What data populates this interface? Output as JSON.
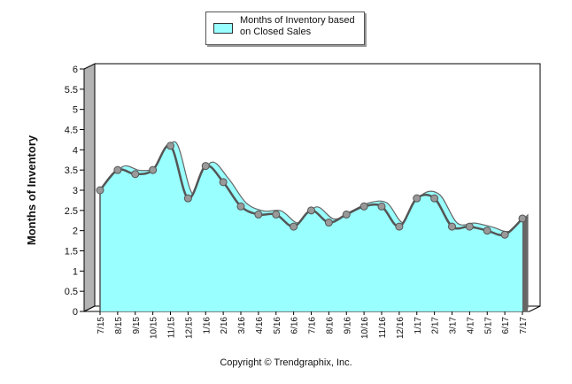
{
  "legend": {
    "label_line1": "Months of Inventory based",
    "label_line2": "on Closed Sales"
  },
  "footer": {
    "copyright": "Copyright © Trendgraphix, Inc."
  },
  "colors": {
    "fill": "#99ffff",
    "line": "#555555",
    "marker": "#999999",
    "grid": "#000000",
    "shade": "#666666"
  },
  "chart_data": {
    "type": "area",
    "title": "",
    "xlabel": "",
    "ylabel": "Months of Inventory",
    "ylim": [
      0,
      6
    ],
    "yticks": [
      "0",
      "0.5",
      "1",
      "1.5",
      "2",
      "2.5",
      "3",
      "3.5",
      "4",
      "4.5",
      "5",
      "5.5",
      "6"
    ],
    "grid": false,
    "legend_position": "top-center",
    "categories": [
      "7/15",
      "8/15",
      "9/15",
      "10/15",
      "11/15",
      "12/15",
      "1/16",
      "2/16",
      "3/16",
      "4/16",
      "5/16",
      "6/16",
      "7/16",
      "8/16",
      "9/16",
      "10/16",
      "11/16",
      "12/16",
      "1/17",
      "2/17",
      "3/17",
      "4/17",
      "5/17",
      "6/17",
      "7/17"
    ],
    "series": [
      {
        "name": "Months of Inventory based on Closed Sales",
        "values": [
          3.0,
          3.5,
          3.4,
          3.5,
          4.1,
          2.8,
          3.6,
          3.2,
          2.6,
          2.4,
          2.4,
          2.1,
          2.5,
          2.2,
          2.4,
          2.6,
          2.6,
          2.1,
          2.8,
          2.8,
          2.1,
          2.1,
          2.0,
          1.9,
          2.3
        ]
      }
    ]
  }
}
